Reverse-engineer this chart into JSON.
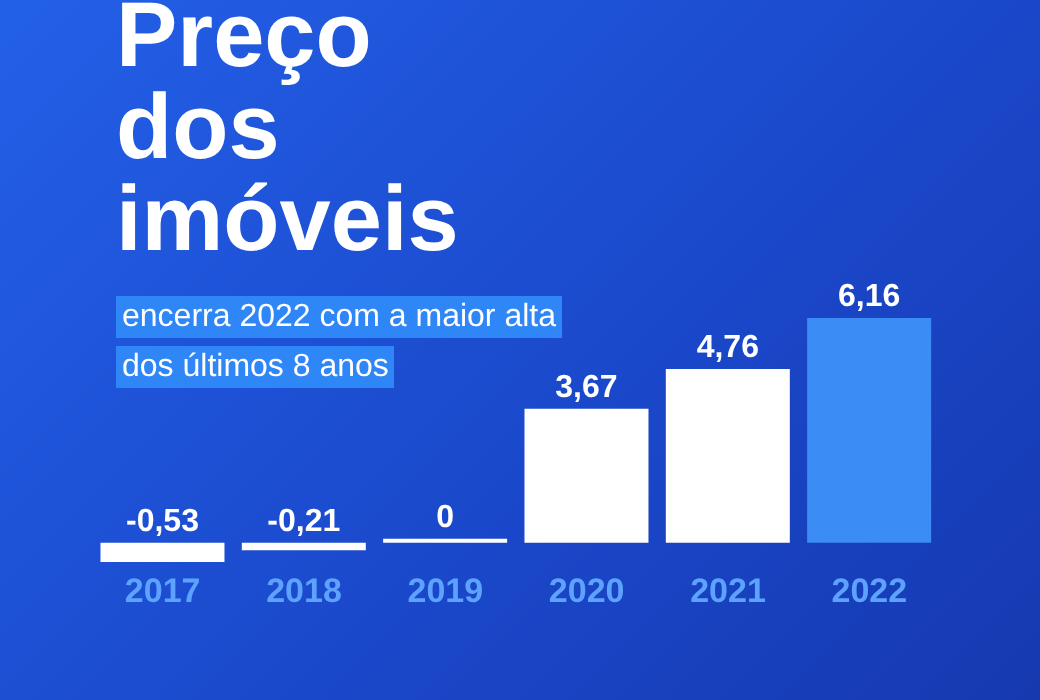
{
  "chart_data": {
    "type": "bar",
    "title": "Preço dos imóveis",
    "subtitle": "encerra 2022 com a maior alta dos últimos 8 anos",
    "categories": [
      "2017",
      "2018",
      "2019",
      "2020",
      "2021",
      "2022"
    ],
    "values": [
      -0.53,
      -0.21,
      0,
      3.67,
      4.76,
      6.16
    ],
    "colors": [
      "#ffffff",
      "#ffffff",
      "#ffffff",
      "#ffffff",
      "#ffffff",
      "#3b8df5"
    ],
    "value_labels": [
      "-0,53",
      "-0,21",
      "0",
      "3,67",
      "4,76",
      "6,16"
    ]
  }
}
